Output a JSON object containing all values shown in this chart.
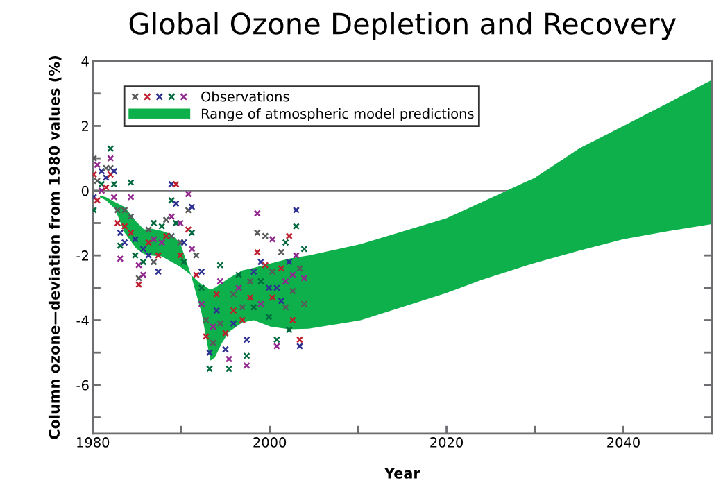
{
  "chart_data": {
    "type": "scatter",
    "title": "Global Ozone Depletion and Recovery",
    "xlabel": "Year",
    "ylabel": "Column ozone—deviation from 1980 values (%)",
    "xlim": [
      1980,
      2050
    ],
    "xticks": [
      2000,
      2020,
      2040,
      {
        "value": 1980,
        "label": "1980"
      },
      {
        "value": 1990,
        "label": null
      },
      {
        "value": 2010,
        "label": null
      },
      {
        "value": 2030,
        "label": null
      }
    ],
    "ylim": [
      -7.5,
      4
    ],
    "yticks": [
      -6,
      -4,
      -2,
      0,
      2,
      4,
      {
        "value": -7,
        "label": null
      },
      {
        "value": -5,
        "label": null
      },
      {
        "value": -3,
        "label": null
      },
      {
        "value": -1,
        "label": null
      },
      {
        "value": 1,
        "label": null
      },
      {
        "value": 3,
        "label": null
      }
    ],
    "grid": false,
    "legend": "top left",
    "ref_lines": [
      {
        "axis": "y",
        "value": 0,
        "color": "#6d6e71"
      }
    ],
    "series": [
      {
        "name": "Range of atmospheric model predictions",
        "type": "line",
        "color": "#0db04b",
        "values": [
          null,
          null,
          null,
          null,
          null,
          null,
          null,
          null,
          null,
          null,
          null,
          null,
          null,
          null,
          null,
          null,
          null,
          null,
          null,
          null,
          null,
          null,
          null,
          null,
          null,
          null,
          null,
          null,
          null
        ],
        "x": [
          1980.8,
          1981.5,
          1982.5,
          1983.6,
          1984.9,
          1985.8,
          1986.6,
          1987.8,
          1988.9,
          1989.9,
          1991.1,
          1992.3,
          1993.3,
          1993.8,
          1994.6,
          1995.4,
          1996.9,
          1998.2,
          2000.1,
          2002.2,
          2004.4,
          2010.3,
          2020,
          2024,
          2030,
          2035,
          2040,
          2045,
          2050
        ],
        "upper": [
          -0.15,
          -0.2,
          -0.35,
          -0.5,
          -0.95,
          -1.2,
          -1.17,
          -1.24,
          -1.35,
          -1.63,
          -2.6,
          -2.9,
          -3.05,
          -3.0,
          -2.85,
          -2.7,
          -2.46,
          -2.38,
          -2.25,
          -2.1,
          -2.0,
          -1.65,
          -0.85,
          -0.35,
          0.4,
          1.3,
          2.0,
          2.7,
          3.42
        ],
        "lower": [
          -0.2,
          -0.3,
          -0.56,
          -1.3,
          -1.78,
          -1.96,
          -2.0,
          -2.03,
          -2.2,
          -2.35,
          -2.6,
          -3.78,
          -5.25,
          -5.15,
          -4.7,
          -4.36,
          -4.07,
          -4.0,
          -4.2,
          -4.28,
          -4.26,
          -4.0,
          -3.16,
          -2.75,
          -2.23,
          -1.85,
          -1.5,
          -1.25,
          -1.03
        ]
      },
      {
        "name": "Observations",
        "marker": "cross",
        "x": [
          1980.1,
          1980.1,
          1980.1,
          1980.1,
          1980.5,
          1980.5,
          1980.5,
          1981.0,
          1981.0,
          1981.0,
          1981.5,
          1981.5,
          1981.5,
          1982.0,
          1982.0,
          1982.0,
          1982.0,
          1982.4,
          1982.4,
          1982.4,
          1982.8,
          1982.8,
          1983.1,
          1983.1,
          1983.1,
          1983.6,
          1983.6,
          1983.6,
          1984.3,
          1984.3,
          1984.3,
          1984.3,
          1984.8,
          1984.8,
          1985.2,
          1985.2,
          1985.2,
          1985.7,
          1985.7,
          1985.7,
          1986.3,
          1986.3,
          1986.3,
          1986.9,
          1986.9,
          1986.9,
          1987.4,
          1987.4,
          1987.8,
          1987.8,
          1988.3,
          1988.3,
          1988.9,
          1988.9,
          1988.9,
          1988.9,
          1989.4,
          1989.4,
          1989.4,
          1989.9,
          1989.9,
          1989.9,
          1990.3,
          1990.3,
          1990.8,
          1990.8,
          1990.8,
          1991.2,
          1991.2,
          1991.2,
          1991.7,
          1991.7,
          1992.3,
          1992.3,
          1992.3,
          1992.8,
          1992.8,
          1993.2,
          1993.2,
          1993.6,
          1993.6,
          1994.0,
          1994.0,
          1994.4,
          1994.4,
          1994.4,
          1995.0,
          1995.0,
          1995.4,
          1995.4,
          1995.9,
          1995.9,
          1995.9,
          1996.5,
          1996.5,
          1996.9,
          1996.9,
          1997.4,
          1997.4,
          1997.4,
          1997.8,
          1997.8,
          1998.2,
          1998.2,
          1998.6,
          1998.6,
          1998.6,
          1999.0,
          1999.0,
          1999.0,
          1999.5,
          1999.5,
          1999.9,
          1999.9,
          2000.3,
          2000.3,
          2000.3,
          2000.8,
          2000.8,
          2000.8,
          2001.3,
          2001.3,
          2001.3,
          2001.8,
          2001.8,
          2001.8,
          2002.2,
          2002.2,
          2002.2,
          2002.6,
          2002.6,
          2002.6,
          2003.0,
          2003.0,
          2003.0,
          2003.4,
          2003.4,
          2003.4,
          2003.9,
          2003.9,
          2003.9
        ],
        "values": [
          1.0,
          0.5,
          -0.2,
          -0.6,
          0.8,
          0.3,
          -0.3,
          0.6,
          0.2,
          0.0,
          0.7,
          0.1,
          0.4,
          1.3,
          1.0,
          0.7,
          0.5,
          0.6,
          0.2,
          -0.2,
          -0.6,
          -1.0,
          -1.3,
          -1.7,
          -2.1,
          -0.6,
          -1.1,
          -1.6,
          0.25,
          -0.2,
          -0.8,
          -1.3,
          -1.5,
          -2.0,
          -2.3,
          -2.7,
          -2.9,
          -1.8,
          -2.2,
          -2.6,
          -1.2,
          -1.6,
          -2.0,
          -1.0,
          -1.5,
          -2.2,
          -2.0,
          -2.5,
          -1.1,
          -1.6,
          -0.9,
          -1.4,
          0.2,
          -0.3,
          -0.8,
          -1.4,
          0.2,
          -0.4,
          -1.0,
          -1.0,
          -1.6,
          -2.0,
          -1.6,
          -2.2,
          -0.1,
          -0.6,
          -1.2,
          -0.5,
          -1.3,
          -1.8,
          -2.0,
          -2.6,
          -2.5,
          -3.0,
          -3.5,
          -4.0,
          -4.5,
          -5.0,
          -5.5,
          -4.2,
          -4.7,
          -3.2,
          -3.7,
          -2.3,
          -2.8,
          -4.1,
          -4.4,
          -4.9,
          -5.5,
          -5.2,
          -3.2,
          -3.7,
          -4.1,
          -2.6,
          -3.0,
          -3.6,
          -4.0,
          -4.6,
          -5.1,
          -5.4,
          -2.8,
          -3.3,
          -2.5,
          -3.6,
          -0.7,
          -1.3,
          -1.9,
          -2.2,
          -2.8,
          -3.5,
          -1.4,
          -2.3,
          -3.0,
          -3.9,
          -1.5,
          -2.5,
          -3.3,
          -3.0,
          -4.6,
          -4.8,
          -1.9,
          -2.4,
          -3.4,
          -1.6,
          -2.8,
          -3.6,
          -1.4,
          -2.2,
          -4.3,
          -2.6,
          -3.1,
          -4.0,
          -0.6,
          -1.1,
          -2.0,
          -2.4,
          -4.6,
          -4.8,
          -1.8,
          -2.7,
          -3.5
        ],
        "colors": [
          "#58595b",
          "#be1e2d",
          "#2e3192",
          "#00693e",
          "#92278f",
          "#58595b",
          "#be1e2d",
          "#2e3192",
          "#00693e",
          "#92278f",
          "#58595b",
          "#be1e2d",
          "#2e3192",
          "#00693e",
          "#92278f",
          "#58595b",
          "#be1e2d",
          "#2e3192",
          "#00693e",
          "#92278f",
          "#58595b",
          "#be1e2d",
          "#2e3192",
          "#00693e",
          "#92278f",
          "#58595b",
          "#be1e2d",
          "#2e3192",
          "#00693e",
          "#92278f",
          "#58595b",
          "#be1e2d",
          "#2e3192",
          "#00693e",
          "#92278f",
          "#58595b",
          "#be1e2d",
          "#2e3192",
          "#00693e",
          "#92278f",
          "#58595b",
          "#be1e2d",
          "#2e3192",
          "#00693e",
          "#92278f",
          "#58595b",
          "#be1e2d",
          "#2e3192",
          "#00693e",
          "#92278f",
          "#58595b",
          "#be1e2d",
          "#2e3192",
          "#00693e",
          "#92278f",
          "#58595b",
          "#be1e2d",
          "#2e3192",
          "#00693e",
          "#92278f",
          "#58595b",
          "#be1e2d",
          "#2e3192",
          "#00693e",
          "#92278f",
          "#58595b",
          "#be1e2d",
          "#2e3192",
          "#00693e",
          "#92278f",
          "#58595b",
          "#be1e2d",
          "#2e3192",
          "#00693e",
          "#92278f",
          "#58595b",
          "#be1e2d",
          "#2e3192",
          "#00693e",
          "#92278f",
          "#58595b",
          "#be1e2d",
          "#2e3192",
          "#00693e",
          "#92278f",
          "#58595b",
          "#be1e2d",
          "#2e3192",
          "#00693e",
          "#92278f",
          "#58595b",
          "#be1e2d",
          "#2e3192",
          "#00693e",
          "#92278f",
          "#58595b",
          "#be1e2d",
          "#2e3192",
          "#00693e",
          "#92278f",
          "#58595b",
          "#be1e2d",
          "#2e3192",
          "#00693e",
          "#92278f",
          "#58595b",
          "#be1e2d",
          "#2e3192",
          "#00693e",
          "#92278f",
          "#58595b",
          "#be1e2d",
          "#2e3192",
          "#00693e",
          "#92278f",
          "#58595b",
          "#be1e2d",
          "#2e3192",
          "#00693e",
          "#92278f",
          "#58595b",
          "#be1e2d",
          "#2e3192",
          "#00693e",
          "#92278f",
          "#58595b",
          "#be1e2d",
          "#2e3192",
          "#00693e",
          "#92278f",
          "#58595b",
          "#be1e2d",
          "#2e3192",
          "#00693e",
          "#92278f",
          "#58595b",
          "#be1e2d",
          "#2e3192",
          "#00693e",
          "#92278f",
          "#58595b"
        ]
      }
    ]
  }
}
